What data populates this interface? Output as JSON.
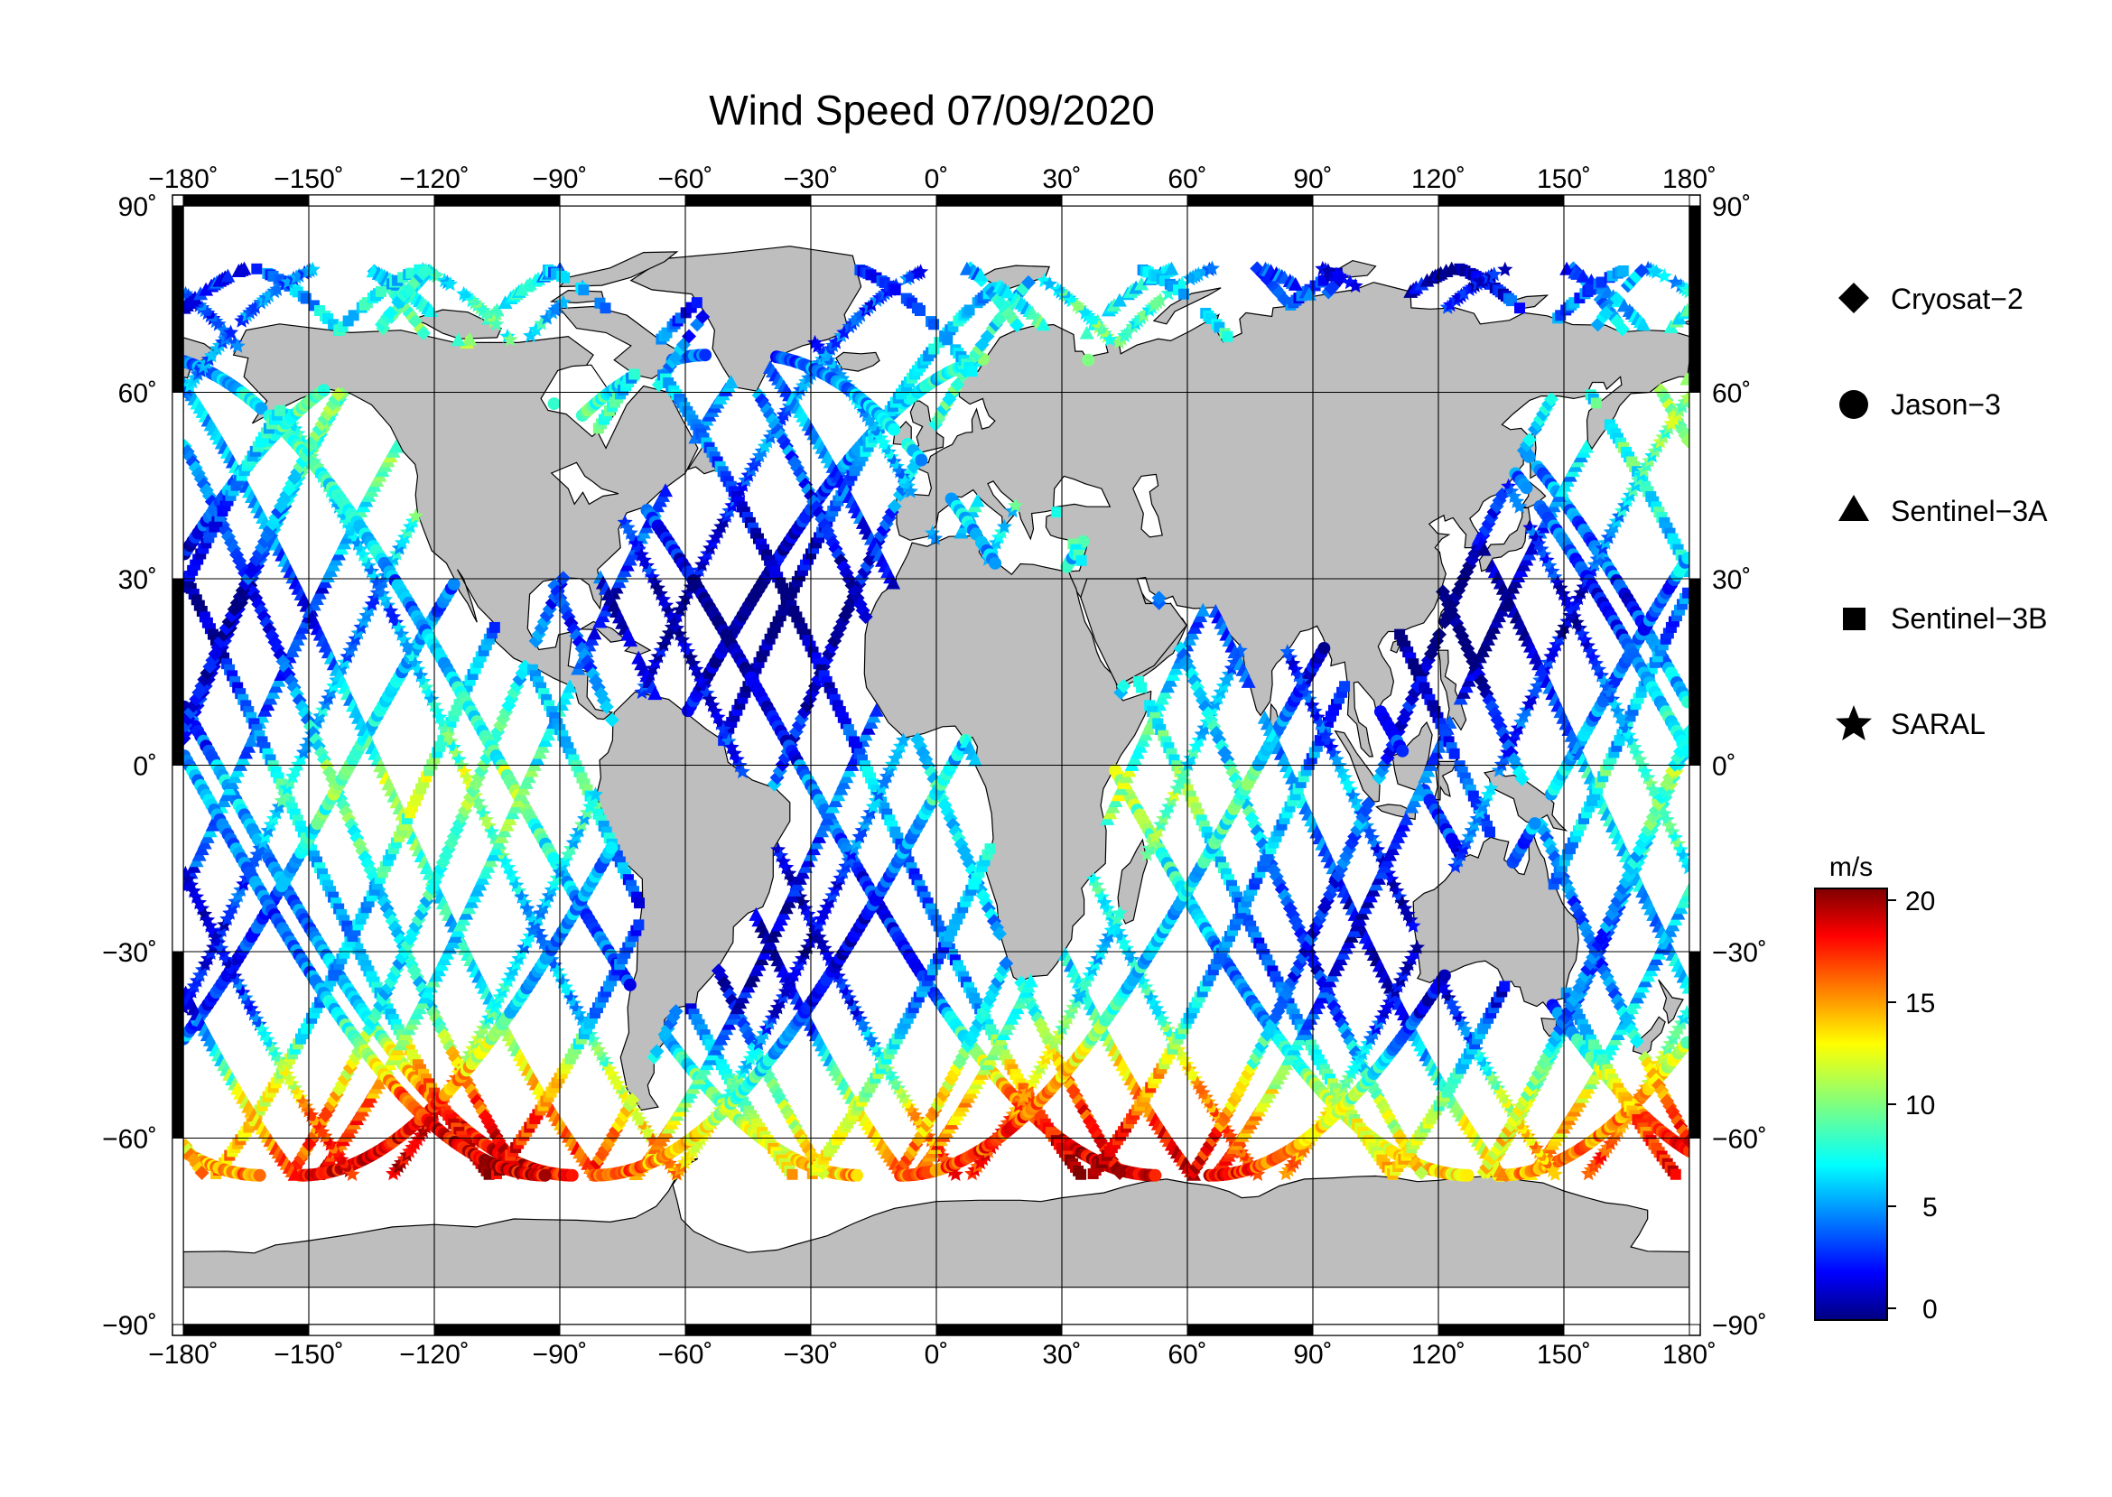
{
  "title": "Wind Speed 07/09/2020",
  "map": {
    "projection": "equirectangular",
    "lon_range": [
      -180,
      180
    ],
    "lat_range": [
      -90,
      90
    ],
    "gridlines": "every 30 degrees",
    "land_color": "#bebebe",
    "ocean_color": "#ffffff",
    "lon_labels": [
      "−180˚",
      "−150˚",
      "−120˚",
      "−90˚",
      "−60˚",
      "−30˚",
      "0˚",
      "30˚",
      "60˚",
      "90˚",
      "120˚",
      "150˚",
      "180˚"
    ],
    "lat_labels": [
      "90˚",
      "60˚",
      "30˚",
      "0˚",
      "−30˚",
      "−60˚",
      "−90˚"
    ]
  },
  "legend": {
    "items": [
      {
        "label": "Cryosat−2",
        "icon": "diamond-icon"
      },
      {
        "label": "Jason−3",
        "icon": "circle-icon"
      },
      {
        "label": "Sentinel−3A",
        "icon": "triangle-icon"
      },
      {
        "label": "Sentinel−3B",
        "icon": "square-icon"
      },
      {
        "label": "SARAL",
        "icon": "star-icon"
      }
    ]
  },
  "colorbar": {
    "unit": "m/s",
    "ticks": [
      "20",
      "15",
      "10",
      "5",
      "0"
    ],
    "range": [
      0,
      20
    ],
    "colormap": "jet"
  }
}
